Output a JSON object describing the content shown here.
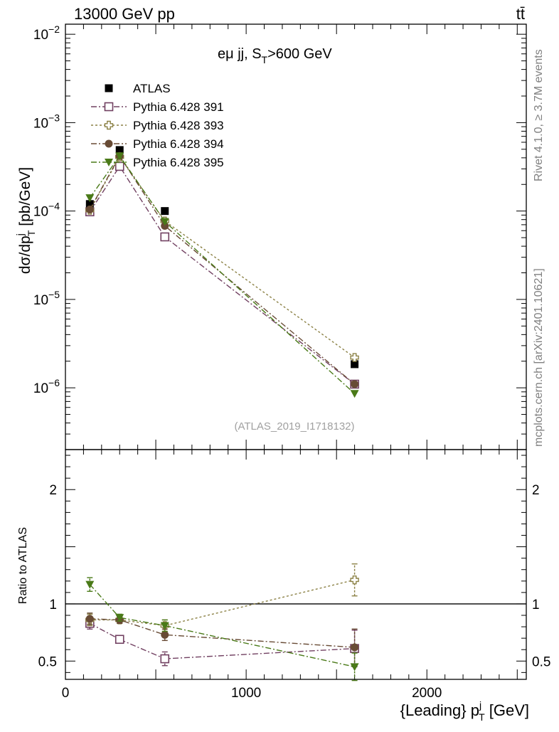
{
  "header": {
    "energy_label": "13000 GeV pp",
    "process_label": "tt̄"
  },
  "side_labels": {
    "rivet": "Rivet 4.1.0, ≥ 3.7M events",
    "mcplots": "mcplots.cern.ch [arXiv:2401.10621]"
  },
  "colors": {
    "atlas": "#000000",
    "p391": "#714061",
    "p393": "#8b8145",
    "p394": "#684b35",
    "p395": "#4a7a18"
  },
  "chart_data": [
    {
      "type": "line",
      "panel": "main",
      "title_main": "eμ jj, S",
      "title_sub": "T",
      "title_tail": ">600 GeV",
      "ylabel_main": "dσ/dp",
      "ylabel_sup": "j",
      "ylabel_sub": "T",
      "ylabel_tail": " [pb/GeV]",
      "yscale": "log",
      "ylim": [
        2e-07,
        0.013
      ],
      "xlim": [
        0,
        2550
      ],
      "ytick_labels": [
        {
          "value": 1e-06,
          "base": "10",
          "exp": "−6"
        },
        {
          "value": 1e-05,
          "base": "10",
          "exp": "−5"
        },
        {
          "value": 0.0001,
          "base": "10",
          "exp": "−4"
        },
        {
          "value": 0.001,
          "base": "10",
          "exp": "−3"
        },
        {
          "value": 0.01,
          "base": "10",
          "exp": "−2"
        }
      ],
      "watermark": "(ATLAS_2019_I1718132)",
      "legend_position": "top-left",
      "x": [
        135,
        300,
        550,
        1600
      ],
      "series": [
        {
          "name": "ATLAS",
          "key": "atlas",
          "marker": "square-filled",
          "line": "none",
          "values": [
            0.00012,
            0.00049,
            0.0001,
            1.85e-06
          ]
        },
        {
          "name": "Pythia 6.428 391",
          "key": "p391",
          "marker": "square-open",
          "line": "dashdot",
          "values": [
            9.8e-05,
            0.00032,
            5.1e-05,
            1.1e-06
          ]
        },
        {
          "name": "Pythia 6.428 393",
          "key": "p393",
          "marker": "cross-open",
          "line": "dotted",
          "values": [
            0.000102,
            0.00041,
            7.7e-05,
            2.2e-06
          ]
        },
        {
          "name": "Pythia 6.428 394",
          "key": "p394",
          "marker": "circle-filled",
          "line": "dashdot",
          "values": [
            0.000104,
            0.00042,
            6.8e-05,
            1.1e-06
          ]
        },
        {
          "name": "Pythia 6.428 395",
          "key": "p395",
          "marker": "triangle-down-filled",
          "line": "dashdot",
          "values": [
            0.000141,
            0.00042,
            7.6e-05,
            8.6e-07
          ]
        }
      ]
    },
    {
      "type": "line",
      "panel": "ratio",
      "ylabel": "Ratio to ATLAS",
      "xlabel_main": "{Leading} p",
      "xlabel_sup": "j",
      "xlabel_sub": "T",
      "xlabel_tail": " [GeV]",
      "ylim": [
        0.34,
        2.35
      ],
      "xlim": [
        0,
        2550
      ],
      "reference_line": 1,
      "xtick_labels": [
        {
          "value": 0,
          "label": "0"
        },
        {
          "value": 1000,
          "label": "1000"
        },
        {
          "value": 2000,
          "label": "2000"
        }
      ],
      "ytick_labels": [
        {
          "value": 0.5,
          "label": "0.5"
        },
        {
          "value": 1,
          "label": "1"
        },
        {
          "value": 2,
          "label": "2"
        }
      ],
      "x": [
        135,
        300,
        550,
        1600
      ],
      "series": [
        {
          "name": "Pythia 6.428 391",
          "key": "p391",
          "marker": "square-open",
          "line": "dashdot",
          "values": [
            0.83,
            0.69,
            0.52,
            0.61
          ],
          "errors": [
            0.05,
            0.03,
            0.06,
            0.16
          ]
        },
        {
          "name": "Pythia 6.428 393",
          "key": "p393",
          "marker": "cross-open",
          "line": "dotted",
          "values": [
            0.86,
            0.86,
            0.81,
            1.21
          ],
          "errors": [
            0.05,
            0.03,
            0.05,
            0.14
          ]
        },
        {
          "name": "Pythia 6.428 394",
          "key": "p394",
          "marker": "circle-filled",
          "line": "dashdot",
          "values": [
            0.87,
            0.86,
            0.73,
            0.62
          ],
          "errors": [
            0.05,
            0.03,
            0.05,
            0.16
          ]
        },
        {
          "name": "Pythia 6.428 395",
          "key": "p395",
          "marker": "triangle-down-filled",
          "line": "dashdot",
          "values": [
            1.17,
            0.88,
            0.81,
            0.45
          ],
          "errors": [
            0.06,
            0.03,
            0.05,
            0.12
          ]
        }
      ]
    }
  ]
}
